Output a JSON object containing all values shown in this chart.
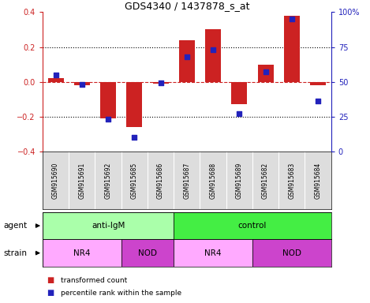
{
  "title": "GDS4340 / 1437878_s_at",
  "samples": [
    "GSM915690",
    "GSM915691",
    "GSM915692",
    "GSM915685",
    "GSM915686",
    "GSM915687",
    "GSM915688",
    "GSM915689",
    "GSM915682",
    "GSM915683",
    "GSM915684"
  ],
  "red_values": [
    0.02,
    -0.02,
    -0.21,
    -0.26,
    -0.01,
    0.24,
    0.3,
    -0.13,
    0.1,
    0.38,
    -0.02
  ],
  "blue_values": [
    55,
    48,
    23,
    10,
    49,
    68,
    73,
    27,
    57,
    95,
    36
  ],
  "ylim_left": [
    -0.4,
    0.4
  ],
  "ylim_right": [
    0,
    100
  ],
  "yticks_left": [
    -0.4,
    -0.2,
    0.0,
    0.2,
    0.4
  ],
  "yticks_right": [
    0,
    25,
    50,
    75,
    100
  ],
  "ytick_labels_right": [
    "0",
    "25",
    "50",
    "75",
    "100%"
  ],
  "red_color": "#CC2222",
  "blue_color": "#2222BB",
  "dashed_line_color": "#CC2222",
  "agent_groups": [
    {
      "label": "anti-IgM",
      "start": 0,
      "end": 5,
      "color": "#AAFFAA"
    },
    {
      "label": "control",
      "start": 5,
      "end": 11,
      "color": "#44EE44"
    }
  ],
  "strain_groups": [
    {
      "label": "NR4",
      "start": 0,
      "end": 3,
      "color": "#FFAAFF"
    },
    {
      "label": "NOD",
      "start": 3,
      "end": 5,
      "color": "#CC44CC"
    },
    {
      "label": "NR4",
      "start": 5,
      "end": 8,
      "color": "#FFAAFF"
    },
    {
      "label": "NOD",
      "start": 8,
      "end": 11,
      "color": "#CC44CC"
    }
  ],
  "legend_red": "transformed count",
  "legend_blue": "percentile rank within the sample",
  "plot_bg_color": "#FFFFFF",
  "label_bg_color": "#DDDDDD",
  "bar_width": 0.6
}
